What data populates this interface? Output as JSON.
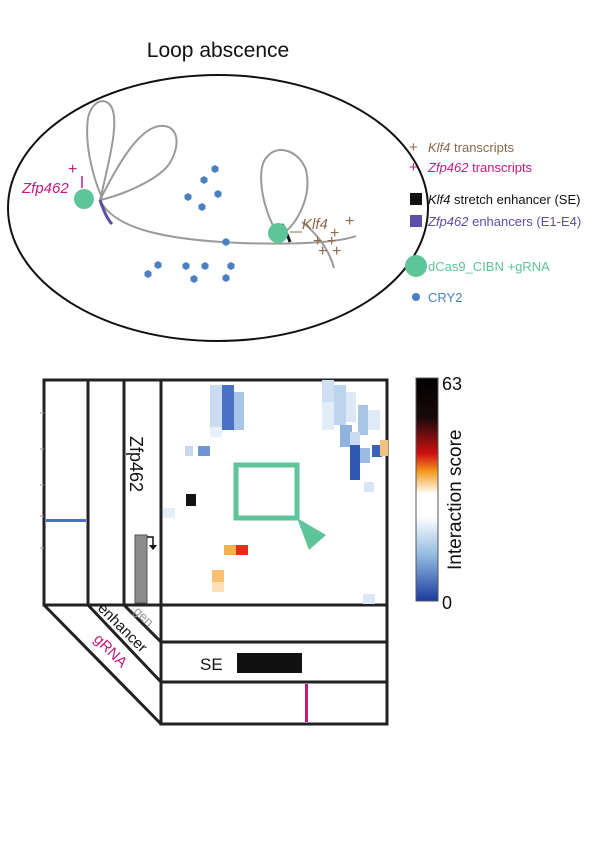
{
  "title": "Loop abscence",
  "colors": {
    "magenta": "#c21a7e",
    "brown": "#8a6a4a",
    "blue_dot": "#4a7fc0",
    "green": "#5ec49a",
    "purple": "#5b4ea6",
    "black": "#111111",
    "gray_line": "#9a9a9a"
  },
  "nucleus": {
    "zfp462_label": "Zfp462",
    "zfp462_plus": "+",
    "klf4_label": "Klf4",
    "klf4_plus_signs": [
      "+",
      "+",
      "+",
      "+",
      "+",
      "+"
    ]
  },
  "legend": [
    {
      "marker": "+",
      "italic": "Klf4",
      "text": " transcripts",
      "color": "#8a6a4a",
      "text_color": "#8a6a4a"
    },
    {
      "marker": "+",
      "italic": "Zfp462",
      "text": " transcripts",
      "color": "#c21a7e",
      "text_color": "#c21a7e"
    },
    {
      "marker": "square",
      "italic": "Klf4",
      "text": " stretch enhancer (SE)",
      "color": "#111111",
      "text_color": "#111111"
    },
    {
      "marker": "square",
      "italic": "Zfp462",
      "text": " enhancers (E1-E4)",
      "color": "#5b4ea6",
      "text_color": "#5b4ea6"
    },
    {
      "marker": "circle-large",
      "italic": "",
      "text": "dCas9_CIBN +gRNA",
      "color": "#5ec49a",
      "text_color": "#5ec49a"
    },
    {
      "marker": "circle-small",
      "italic": "",
      "text": "CRY2",
      "color": "#4a7fc0",
      "text_color": "#4a7fc0"
    }
  ],
  "heatmap": {
    "gene_label": "Zfp462",
    "enhancer_label": "enhancer",
    "gene_track_label": "gen",
    "grna_label": "gRNA",
    "se_label": "SE",
    "colorbar": {
      "title": "Interaction score",
      "max": 63,
      "min": 0,
      "max_label": "63",
      "min_label": "0"
    }
  }
}
